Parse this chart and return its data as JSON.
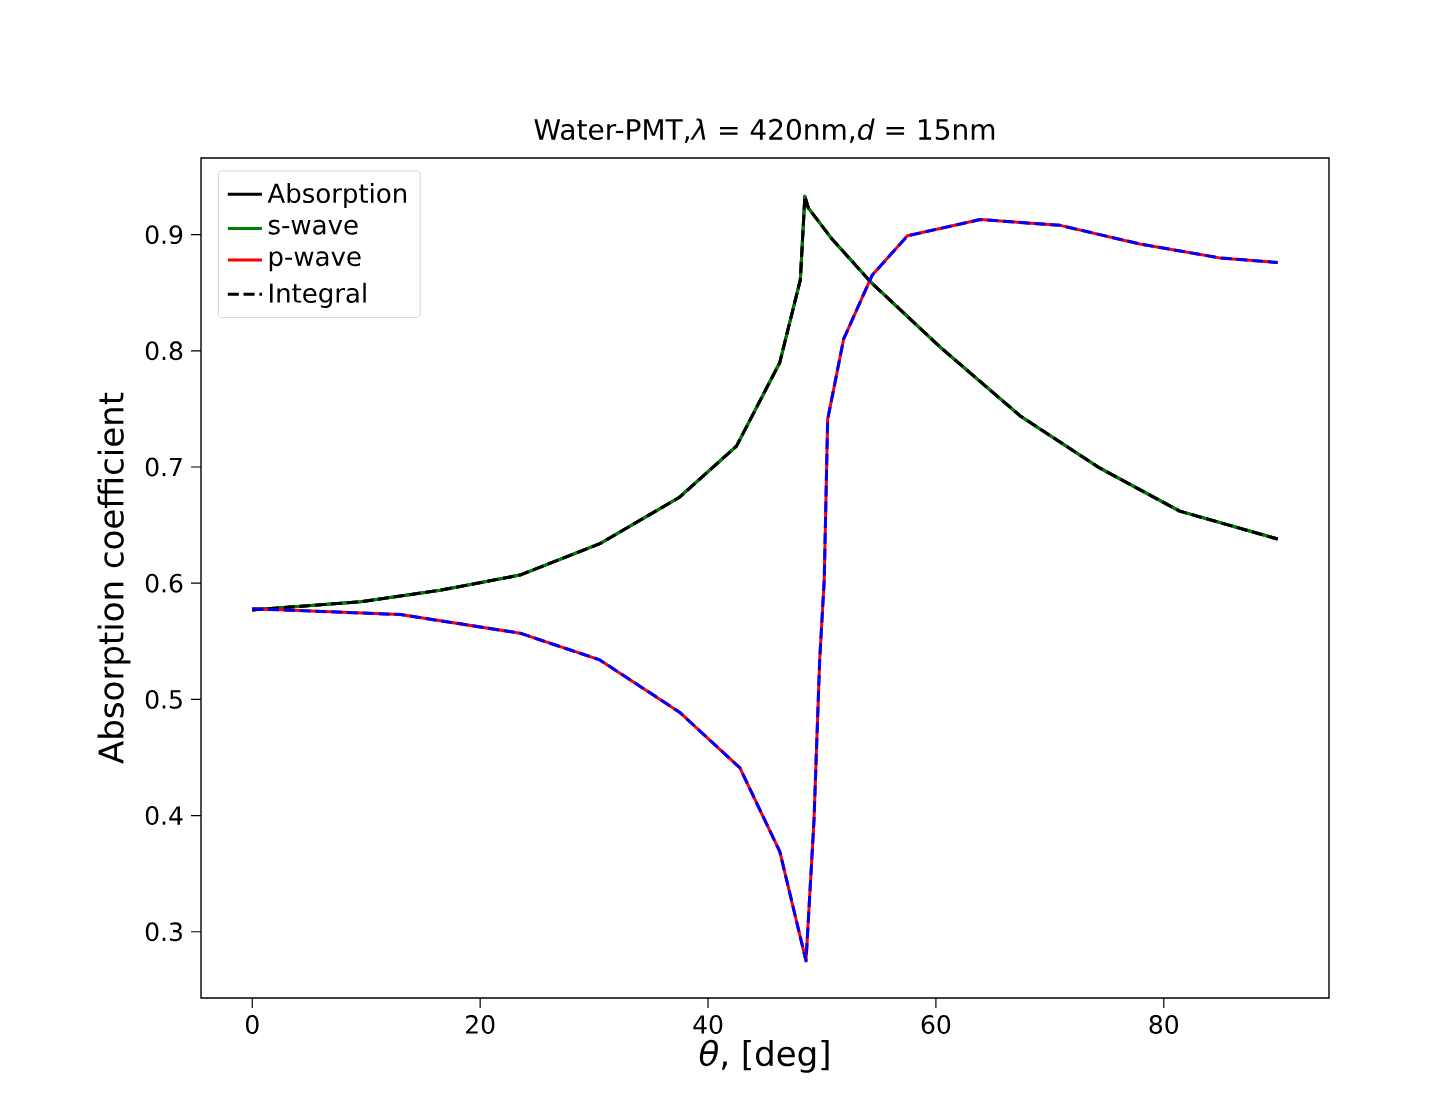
{
  "chart_data": {
    "type": "line",
    "title": "Water-PMT,*λ* = 420nm,*d* = 15nm",
    "xlabel": "*θ*,  [deg]",
    "ylabel": "Absorption coefficient",
    "xlim": [
      -4.5,
      94.5
    ],
    "ylim": [
      0.243,
      0.966
    ],
    "xticks": [
      0,
      20,
      40,
      60,
      80
    ],
    "yticks": [
      0.3,
      0.4,
      0.5,
      0.6,
      0.7,
      0.8,
      0.9
    ],
    "legend": "top left",
    "grid": false,
    "marker": "none",
    "series": [
      {
        "name": "Absorption",
        "color": "#000000",
        "line_style": "solid",
        "x": [
          0,
          9.5,
          16.5,
          23.5,
          30.5,
          37.5,
          42.5,
          46.3,
          48.1,
          48.5,
          48.8,
          50.9,
          54.4,
          60.4,
          67.4,
          74.4,
          81.4,
          90
        ],
        "values": [
          0.577,
          0.584,
          0.594,
          0.607,
          0.634,
          0.674,
          0.718,
          0.79,
          0.861,
          0.933,
          0.923,
          0.896,
          0.858,
          0.803,
          0.744,
          0.699,
          0.662,
          0.638
        ]
      },
      {
        "name": "s-wave",
        "color": "#008000",
        "line_style": "solid",
        "x": [
          0,
          9.5,
          16.5,
          23.5,
          30.5,
          37.5,
          42.5,
          46.3,
          48.1,
          48.5,
          48.8,
          50.9,
          54.4,
          60.4,
          67.4,
          74.4,
          81.4,
          90
        ],
        "values": [
          0.577,
          0.584,
          0.594,
          0.607,
          0.634,
          0.674,
          0.718,
          0.79,
          0.861,
          0.933,
          0.923,
          0.896,
          0.858,
          0.803,
          0.744,
          0.699,
          0.662,
          0.638
        ]
      },
      {
        "name": "p-wave",
        "color": "#ff0000",
        "line_style": "solid",
        "x": [
          0,
          13,
          23.5,
          30.5,
          37.5,
          42.8,
          46.3,
          48.6,
          49.3,
          49.8,
          50.2,
          50.5,
          51.9,
          54.4,
          57.5,
          63.9,
          70.9,
          77.9,
          84.9,
          90
        ],
        "values": [
          0.578,
          0.573,
          0.557,
          0.534,
          0.489,
          0.441,
          0.369,
          0.275,
          0.396,
          0.534,
          0.603,
          0.741,
          0.81,
          0.865,
          0.899,
          0.913,
          0.908,
          0.892,
          0.88,
          0.876
        ]
      },
      {
        "name": "Integral",
        "color": "#000000",
        "line_style": "dashed",
        "x": [
          0,
          9.5,
          16.5,
          23.5,
          30.5,
          37.5,
          42.5,
          46.3,
          48.1,
          48.5,
          48.8,
          50.9,
          54.4,
          60.4,
          67.4,
          74.4,
          81.4,
          90
        ],
        "values": [
          0.577,
          0.584,
          0.594,
          0.607,
          0.634,
          0.674,
          0.718,
          0.79,
          0.861,
          0.933,
          0.923,
          0.896,
          0.858,
          0.803,
          0.744,
          0.699,
          0.662,
          0.638
        ]
      },
      {
        "color": "#0000ff",
        "line_style": "dashed",
        "x": [
          0,
          13,
          23.5,
          30.5,
          37.5,
          42.8,
          46.3,
          48.6,
          49.3,
          49.8,
          50.2,
          50.5,
          51.9,
          54.4,
          57.5,
          63.9,
          70.9,
          77.9,
          84.9,
          90
        ],
        "values": [
          0.578,
          0.573,
          0.557,
          0.534,
          0.489,
          0.441,
          0.369,
          0.275,
          0.396,
          0.534,
          0.603,
          0.741,
          0.81,
          0.865,
          0.899,
          0.913,
          0.908,
          0.892,
          0.88,
          0.876
        ]
      }
    ]
  }
}
